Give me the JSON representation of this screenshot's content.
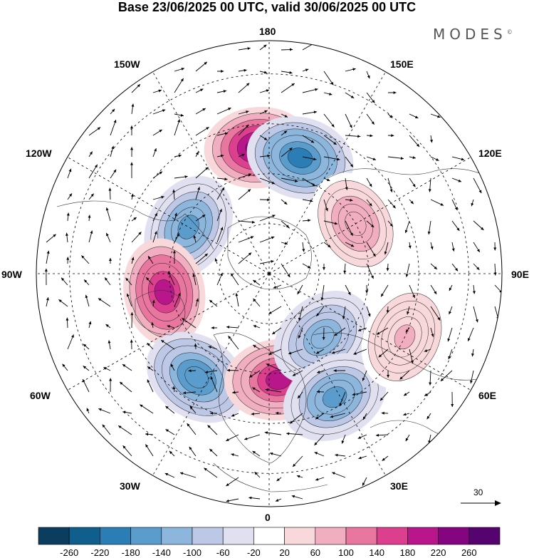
{
  "title": "Base 23/06/2025 00 UTC, valid 30/06/2025 00 UTC",
  "logo": {
    "text": "MODES",
    "mark": "©"
  },
  "lon_labels": {
    "n180": "180",
    "n150w": "150W",
    "n150e": "150E",
    "n120w": "120W",
    "n120e": "120E",
    "n90w": "90W",
    "n90e": "90E",
    "n60w": "60W",
    "n60e": "60E",
    "n30w": "30W",
    "n30e": "30E",
    "n0": "0"
  },
  "vector_ref": "30",
  "colorbar": {
    "ticks": [
      "-260",
      "-220",
      "-180",
      "-140",
      "-100",
      "-60",
      "-20",
      "20",
      "60",
      "100",
      "140",
      "180",
      "220",
      "260"
    ],
    "colors": [
      "#0a3d5e",
      "#0f5e8c",
      "#2a7db5",
      "#5a9ccc",
      "#8cb6dc",
      "#bcc8e6",
      "#e0e0f0",
      "#ffffff",
      "#f8d8da",
      "#f1aec0",
      "#e9769f",
      "#dd3f8f",
      "#b8168a",
      "#85047f",
      "#55046f"
    ]
  },
  "anomaly_centers": [
    {
      "name": "north-pacific-positive",
      "lat": 52,
      "lon": -175,
      "value": 230
    },
    {
      "name": "bering-negative",
      "lat": 54,
      "lon": 165,
      "value": -200
    },
    {
      "name": "siberia-positive",
      "lat": 60,
      "lon": 120,
      "value": 90
    },
    {
      "name": "canada-negative",
      "lat": 62,
      "lon": -120,
      "value": -150
    },
    {
      "name": "hudson-positive",
      "lat": 58,
      "lon": -80,
      "value": 200
    },
    {
      "name": "atlantic-negative",
      "lat": 52,
      "lon": -35,
      "value": -170
    },
    {
      "name": "europe-positive",
      "lat": 58,
      "lon": 5,
      "value": 190
    },
    {
      "name": "scandinavia-negative",
      "lat": 65,
      "lon": 40,
      "value": -140
    },
    {
      "name": "black-sea-negative",
      "lat": 48,
      "lon": 28,
      "value": -160
    },
    {
      "name": "central-asia-positive",
      "lat": 45,
      "lon": 65,
      "value": 60
    }
  ]
}
